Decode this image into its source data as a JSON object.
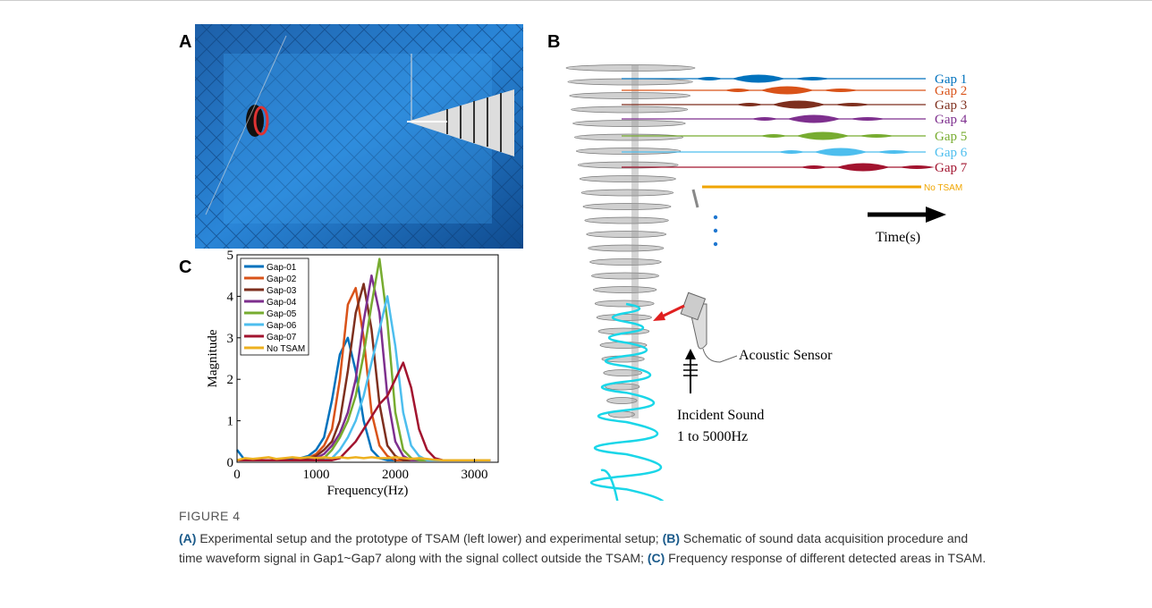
{
  "figure": {
    "panels": {
      "a": "A",
      "b": "B",
      "c": "C"
    },
    "b_labels": {
      "gaps": [
        "Gap 1",
        "Gap 2",
        "Gap 3",
        "Gap 4",
        "Gap 5",
        "Gap 6",
        "Gap 7"
      ],
      "no_tsam": "No TSAM",
      "time": "Time(s)",
      "sensor": "Acoustic Sensor",
      "incident": "Incident Sound",
      "range": "1 to 5000Hz"
    },
    "caption": {
      "label": "FIGURE 4",
      "lines": [
        [
          {
            "label": "(A)",
            "text": " Experimental setup and the prototype of TSAM (left lower) and experimental setup; "
          },
          {
            "label": "(B)",
            "text": " Schematic of sound data acquisition procedure and"
          }
        ],
        [
          {
            "text": "time waveform signal in Gap1~Gap7 along with the signal collect outside the TSAM; "
          },
          {
            "label": "(C)",
            "text": " Frequency response of different detected areas in TSAM."
          }
        ]
      ]
    }
  },
  "chart_data": {
    "type": "line",
    "xlabel": "Frequency(Hz)",
    "ylabel": "Magnitude",
    "x": [
      0,
      100,
      200,
      300,
      400,
      500,
      600,
      700,
      800,
      900,
      1000,
      1100,
      1200,
      1300,
      1400,
      1500,
      1600,
      1700,
      1800,
      1900,
      2000,
      2100,
      2200,
      2300,
      2400,
      2500,
      2600,
      2700,
      2800,
      2900,
      3000,
      3100,
      3200
    ],
    "series": [
      {
        "name": "Gap-01",
        "color": "#0072bd",
        "values": [
          0.3,
          0.05,
          0.05,
          0.05,
          0.05,
          0.05,
          0.05,
          0.1,
          0.1,
          0.15,
          0.3,
          0.6,
          1.5,
          2.6,
          3.0,
          2.2,
          1.0,
          0.3,
          0.1,
          0.05,
          0.05,
          0.05,
          0.05,
          0.05,
          0.05,
          0.05,
          0.05,
          0.05,
          0.05,
          0.05,
          0.05,
          0.05,
          0.05
        ]
      },
      {
        "name": "Gap-02",
        "color": "#d95319",
        "values": [
          0.05,
          0.05,
          0.05,
          0.05,
          0.05,
          0.05,
          0.05,
          0.05,
          0.1,
          0.1,
          0.2,
          0.4,
          0.8,
          2.0,
          3.8,
          4.2,
          3.0,
          1.2,
          0.4,
          0.15,
          0.05,
          0.05,
          0.05,
          0.05,
          0.05,
          0.05,
          0.05,
          0.05,
          0.05,
          0.05,
          0.05,
          0.05,
          0.05
        ]
      },
      {
        "name": "Gap-03",
        "color": "#7e2f1e",
        "values": [
          0.05,
          0.05,
          0.05,
          0.05,
          0.05,
          0.05,
          0.05,
          0.05,
          0.05,
          0.1,
          0.15,
          0.3,
          0.5,
          1.0,
          2.2,
          3.6,
          4.3,
          3.2,
          1.4,
          0.4,
          0.15,
          0.05,
          0.05,
          0.05,
          0.05,
          0.05,
          0.05,
          0.05,
          0.05,
          0.05,
          0.05,
          0.05,
          0.05
        ]
      },
      {
        "name": "Gap-04",
        "color": "#7e2f8e",
        "values": [
          0.05,
          0.05,
          0.05,
          0.05,
          0.05,
          0.05,
          0.05,
          0.05,
          0.05,
          0.05,
          0.1,
          0.2,
          0.4,
          0.7,
          1.2,
          2.0,
          3.4,
          4.5,
          3.6,
          1.6,
          0.5,
          0.15,
          0.05,
          0.05,
          0.05,
          0.05,
          0.05,
          0.05,
          0.05,
          0.05,
          0.05,
          0.05,
          0.05
        ]
      },
      {
        "name": "Gap-05",
        "color": "#77ac30",
        "values": [
          0.05,
          0.05,
          0.05,
          0.05,
          0.05,
          0.05,
          0.05,
          0.05,
          0.05,
          0.05,
          0.05,
          0.1,
          0.3,
          0.6,
          1.0,
          1.6,
          2.6,
          3.8,
          4.9,
          3.4,
          1.2,
          0.3,
          0.1,
          0.05,
          0.05,
          0.05,
          0.05,
          0.05,
          0.05,
          0.05,
          0.05,
          0.05,
          0.05
        ]
      },
      {
        "name": "Gap-06",
        "color": "#4dbeee",
        "values": [
          0.05,
          0.05,
          0.05,
          0.05,
          0.05,
          0.05,
          0.05,
          0.05,
          0.05,
          0.05,
          0.05,
          0.05,
          0.1,
          0.3,
          0.6,
          1.0,
          1.6,
          2.4,
          3.2,
          4.0,
          2.8,
          1.2,
          0.4,
          0.15,
          0.05,
          0.05,
          0.05,
          0.05,
          0.05,
          0.05,
          0.05,
          0.05,
          0.05
        ]
      },
      {
        "name": "Gap-07",
        "color": "#a2142f",
        "values": [
          0.05,
          0.05,
          0.05,
          0.05,
          0.05,
          0.05,
          0.05,
          0.05,
          0.05,
          0.05,
          0.05,
          0.05,
          0.05,
          0.1,
          0.3,
          0.5,
          0.8,
          1.1,
          1.4,
          1.6,
          2.0,
          2.4,
          1.8,
          0.8,
          0.3,
          0.1,
          0.05,
          0.05,
          0.05,
          0.05,
          0.05,
          0.05,
          0.05
        ]
      },
      {
        "name": "No TSAM",
        "color": "#edb120",
        "values": [
          0.05,
          0.1,
          0.08,
          0.1,
          0.12,
          0.08,
          0.1,
          0.12,
          0.1,
          0.12,
          0.1,
          0.12,
          0.1,
          0.12,
          0.1,
          0.12,
          0.1,
          0.12,
          0.1,
          0.1,
          0.12,
          0.1,
          0.08,
          0.1,
          0.08,
          0.06,
          0.05,
          0.05,
          0.05,
          0.05,
          0.05,
          0.05,
          0.05
        ]
      }
    ],
    "xlim": [
      0,
      3300
    ],
    "ylim": [
      0,
      5
    ],
    "xticks": [
      0,
      1000,
      2000,
      3000
    ],
    "yticks": [
      0,
      1,
      2,
      3,
      4,
      5
    ],
    "legend": "upper left"
  }
}
